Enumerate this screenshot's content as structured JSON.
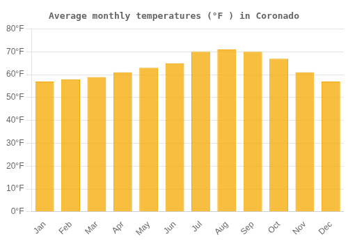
{
  "chart_data": {
    "type": "bar",
    "title": "Average monthly temperatures (°F ) in Coronado",
    "categories": [
      "Jan",
      "Feb",
      "Mar",
      "Apr",
      "May",
      "Jun",
      "Jul",
      "Aug",
      "Sep",
      "Oct",
      "Nov",
      "Dec"
    ],
    "values": [
      57,
      58,
      59,
      61,
      63,
      65,
      70,
      71,
      70,
      67,
      61,
      57
    ],
    "color": "#F5A800",
    "ylim": [
      0,
      80
    ],
    "yticks": [
      {
        "value": 0,
        "label": "0°F"
      },
      {
        "value": 10,
        "label": "10°F"
      },
      {
        "value": 20,
        "label": "20°F"
      },
      {
        "value": 30,
        "label": "30°F"
      },
      {
        "value": 40,
        "label": "40°F"
      },
      {
        "value": 50,
        "label": "50°F"
      },
      {
        "value": 60,
        "label": "60°F"
      },
      {
        "value": 70,
        "label": "70°F"
      },
      {
        "value": 80,
        "label": "80°F"
      }
    ],
    "grid": true
  }
}
